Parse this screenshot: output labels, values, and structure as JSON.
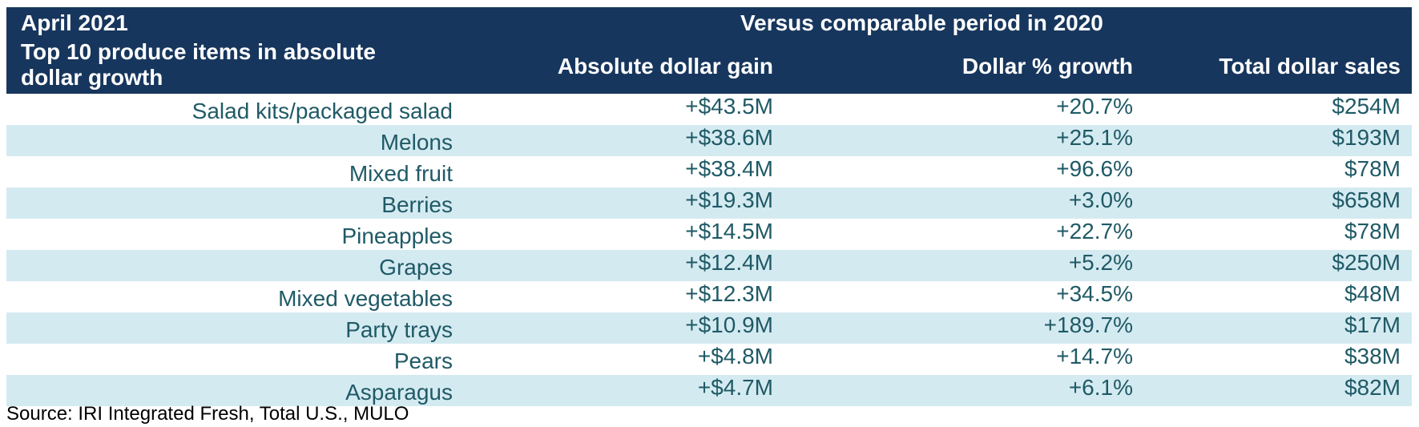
{
  "header": {
    "period": "April 2021",
    "subtitle": "Top 10 produce items in absolute dollar growth",
    "group_label": "Versus comparable period in 2020",
    "columns": [
      "Absolute dollar gain",
      "Dollar % growth",
      "Total dollar sales"
    ]
  },
  "rows": [
    {
      "item": "Salad kits/packaged salad",
      "gain": "+$43.5M",
      "pct": "+20.7%",
      "sales": "$254M"
    },
    {
      "item": "Melons",
      "gain": "+$38.6M",
      "pct": "+25.1%",
      "sales": "$193M"
    },
    {
      "item": "Mixed fruit",
      "gain": "+$38.4M",
      "pct": "+96.6%",
      "sales": "$78M"
    },
    {
      "item": "Berries",
      "gain": "+$19.3M",
      "pct": "+3.0%",
      "sales": "$658M"
    },
    {
      "item": "Pineapples",
      "gain": "+$14.5M",
      "pct": "+22.7%",
      "sales": "$78M"
    },
    {
      "item": "Grapes",
      "gain": "+$12.4M",
      "pct": "+5.2%",
      "sales": "$250M"
    },
    {
      "item": "Mixed vegetables",
      "gain": "+$12.3M",
      "pct": "+34.5%",
      "sales": "$48M"
    },
    {
      "item": "Party trays",
      "gain": "+$10.9M",
      "pct": "+189.7%",
      "sales": "$17M"
    },
    {
      "item": "Pears",
      "gain": "+$4.8M",
      "pct": "+14.7%",
      "sales": "$38M"
    },
    {
      "item": "Asparagus",
      "gain": "+$4.7M",
      "pct": "+6.1%",
      "sales": "$82M"
    }
  ],
  "source": "Source: IRI Integrated Fresh, Total U.S., MULO",
  "colors": {
    "header_bg": "#17365d",
    "band_bg": "#d4eaf1",
    "body_text": "#1f5a66"
  },
  "chart_data": {
    "type": "table",
    "title": "April 2021",
    "subtitle": "Top 10 produce items in absolute dollar growth",
    "group_header": "Versus comparable period in 2020",
    "columns": [
      "Absolute dollar gain",
      "Dollar % growth",
      "Total dollar sales"
    ],
    "categories": [
      "Salad kits/packaged salad",
      "Melons",
      "Mixed fruit",
      "Berries",
      "Pineapples",
      "Grapes",
      "Mixed vegetables",
      "Party trays",
      "Pears",
      "Asparagus"
    ],
    "series": [
      {
        "name": "Absolute dollar gain",
        "values": [
          43.5,
          38.6,
          38.4,
          19.3,
          14.5,
          12.4,
          12.3,
          10.9,
          4.8,
          4.7
        ]
      },
      {
        "name": "Dollar % growth",
        "values": [
          20.7,
          25.1,
          96.6,
          3.0,
          22.7,
          5.2,
          34.5,
          189.7,
          14.7,
          6.1
        ]
      },
      {
        "name": "Total dollar sales",
        "values": [
          254,
          193,
          78,
          658,
          78,
          250,
          48,
          17,
          38,
          82
        ]
      }
    ]
  }
}
